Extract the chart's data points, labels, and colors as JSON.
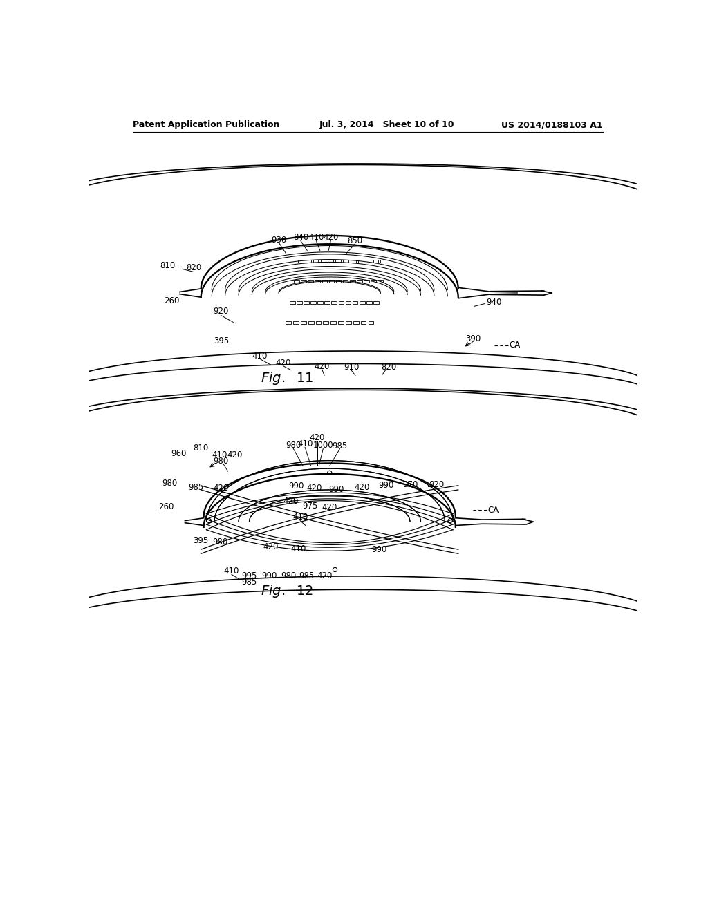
{
  "bg_color": "#ffffff",
  "header_left": "Patent Application Publication",
  "header_mid": "Jul. 3, 2014   Sheet 10 of 10",
  "header_right": "US 2014/0188103 A1",
  "line_color": "#000000",
  "lw": 1.2
}
